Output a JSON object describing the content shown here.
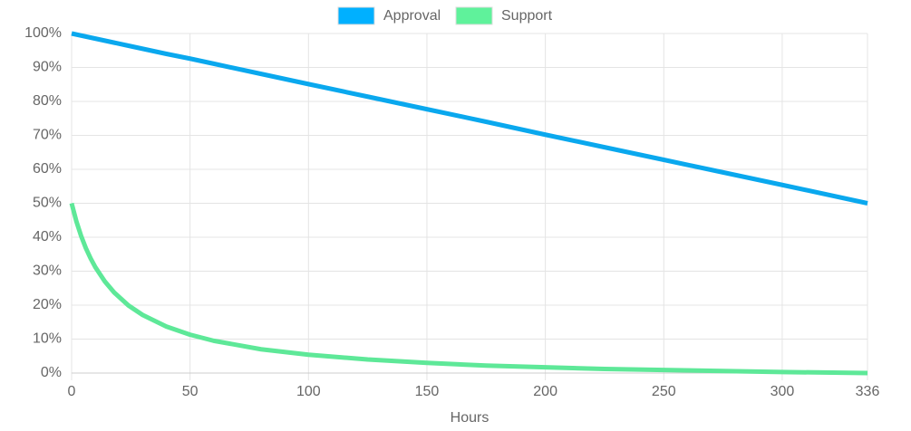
{
  "chart_data": {
    "type": "line",
    "x_label": "Hours",
    "x": [
      0,
      2,
      4,
      6,
      8,
      10,
      14,
      18,
      24,
      30,
      40,
      50,
      60,
      80,
      100,
      125,
      150,
      175,
      200,
      225,
      250,
      275,
      300,
      336
    ],
    "series": [
      {
        "name": "Approval",
        "color": "#0aa8ee",
        "legend_color": "#00b0ff",
        "values": [
          100,
          99.7,
          99.4,
          99.1,
          98.8,
          98.5,
          97.9,
          97.3,
          96.4,
          95.5,
          94.0,
          92.6,
          91.1,
          88.1,
          85.1,
          81.4,
          77.7,
          74.0,
          70.2,
          66.5,
          62.8,
          59.1,
          55.4,
          50
        ]
      },
      {
        "name": "Support",
        "color": "#5ee898",
        "legend_color": "#5ff29b",
        "values": [
          50.0,
          44.7,
          40.4,
          36.8,
          33.8,
          31.2,
          27.0,
          23.7,
          19.9,
          17.1,
          13.7,
          11.3,
          9.5,
          7.0,
          5.4,
          4.0,
          3.0,
          2.2,
          1.7,
          1.2,
          0.9,
          0.6,
          0.3,
          0
        ]
      }
    ],
    "xlim": [
      0,
      336
    ],
    "xticks": [
      0,
      50,
      100,
      150,
      200,
      250,
      300,
      336
    ],
    "ylim": [
      0,
      100
    ],
    "yticks": [
      {
        "value": 0,
        "label": "0%"
      },
      {
        "value": 10,
        "label": "10%"
      },
      {
        "value": 20,
        "label": "20%"
      },
      {
        "value": 30,
        "label": "30%"
      },
      {
        "value": 40,
        "label": "40%"
      },
      {
        "value": 50,
        "label": "50%"
      },
      {
        "value": 60,
        "label": "60%"
      },
      {
        "value": 70,
        "label": "70%"
      },
      {
        "value": 80,
        "label": "80%"
      },
      {
        "value": 90,
        "label": "90%"
      },
      {
        "value": 100,
        "label": "100%"
      }
    ],
    "grid": true,
    "legend": "top"
  }
}
